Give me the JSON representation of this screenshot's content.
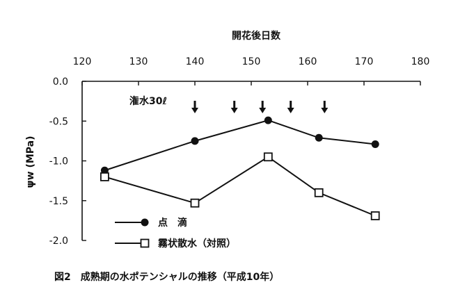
{
  "chart_data": {
    "type": "line",
    "xlabel": "開花後日数",
    "ylabel": "ψw (MPa)",
    "xlim": [
      120,
      180
    ],
    "ylim": [
      -2.0,
      0.0
    ],
    "x_ticks": [
      "120",
      "130",
      "140",
      "150",
      "160",
      "170",
      "180"
    ],
    "y_ticks": [
      "0.0",
      "-0.5",
      "-1.0",
      "-1.5",
      "-2.0"
    ],
    "x_axis_position": "top",
    "grid": false,
    "legend_position": "bottom-left",
    "series": [
      {
        "name": "点　滴",
        "marker": "filled-circle",
        "x": [
          124,
          140,
          153,
          162,
          172
        ],
        "y": [
          -1.12,
          -0.75,
          -0.49,
          -0.71,
          -0.79
        ]
      },
      {
        "name": "霧状散水（対照）",
        "marker": "open-square",
        "x": [
          124,
          140,
          153,
          162,
          172
        ],
        "y": [
          -1.2,
          -1.53,
          -0.95,
          -1.4,
          -1.69
        ]
      }
    ],
    "annotation": {
      "text": "潅水30ℓ",
      "arrow_x": [
        140,
        147,
        152,
        157,
        163
      ]
    },
    "caption": "図2　成熟期の水ポテンシャルの推移（平成10年）"
  }
}
